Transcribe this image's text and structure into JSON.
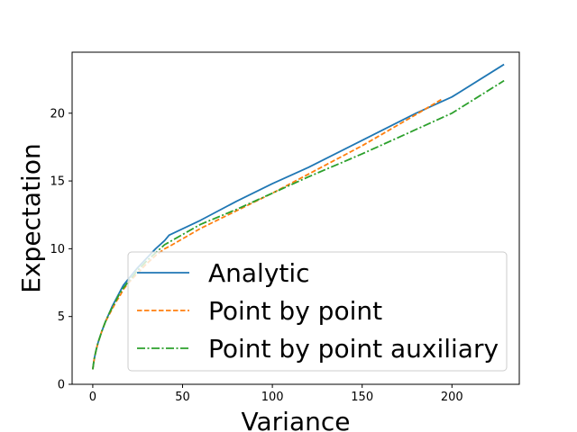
{
  "chart_data": {
    "type": "line",
    "title": "",
    "xlabel": "Variance",
    "ylabel": "Expectation",
    "xlim": [
      -11.5,
      237.5
    ],
    "ylim": [
      0,
      24.5
    ],
    "xticks": [
      0,
      50,
      100,
      150,
      200
    ],
    "yticks": [
      0,
      5,
      10,
      15,
      20
    ],
    "grid": false,
    "legend_position": "lower right",
    "series": [
      {
        "name": "Analytic",
        "color": "#1f77b4",
        "dash": "solid",
        "x": [
          0,
          0.5,
          1,
          2,
          3,
          4,
          5,
          7,
          9,
          11,
          13,
          15,
          17,
          20,
          25,
          30,
          35,
          40,
          42.5,
          60,
          80,
          100,
          120,
          150,
          180,
          200,
          229
        ],
        "y": [
          1.1,
          1.6,
          2.0,
          2.6,
          3.1,
          3.5,
          3.9,
          4.6,
          5.2,
          5.8,
          6.3,
          6.8,
          7.3,
          7.8,
          8.6,
          9.3,
          10.0,
          10.6,
          11.0,
          12.1,
          13.5,
          14.8,
          16.0,
          18.0,
          20.0,
          21.2,
          23.6
        ]
      },
      {
        "name": "Point by point",
        "color": "#ff7f0e",
        "dash": "dashed",
        "x": [
          0,
          0.5,
          1,
          2,
          3,
          4,
          5,
          7,
          9,
          11,
          13,
          15,
          17,
          20,
          25,
          30,
          35,
          40,
          43,
          60,
          80,
          100,
          120,
          150,
          180,
          194
        ],
        "y": [
          1.1,
          1.6,
          2.0,
          2.6,
          3.1,
          3.5,
          3.9,
          4.6,
          5.1,
          5.6,
          6.1,
          6.5,
          7.0,
          7.5,
          8.2,
          8.9,
          9.5,
          10.0,
          10.2,
          11.5,
          12.8,
          14.1,
          15.5,
          17.6,
          19.9,
          21.0
        ]
      },
      {
        "name": "Point by point auxiliary",
        "color": "#2ca02c",
        "dash": "dashdot",
        "x": [
          0,
          0.5,
          1,
          2,
          3,
          4,
          5,
          7,
          9,
          11,
          13,
          15,
          17,
          20,
          25,
          30,
          35,
          40,
          44,
          60,
          80,
          100,
          120,
          150,
          180,
          200,
          229
        ],
        "y": [
          1.1,
          1.6,
          2.0,
          2.6,
          3.1,
          3.5,
          3.9,
          4.6,
          5.2,
          5.7,
          6.2,
          6.7,
          7.1,
          7.6,
          8.4,
          9.1,
          9.7,
          10.3,
          10.6,
          11.8,
          12.9,
          14.1,
          15.3,
          17.0,
          18.8,
          20.0,
          22.4
        ]
      }
    ]
  }
}
